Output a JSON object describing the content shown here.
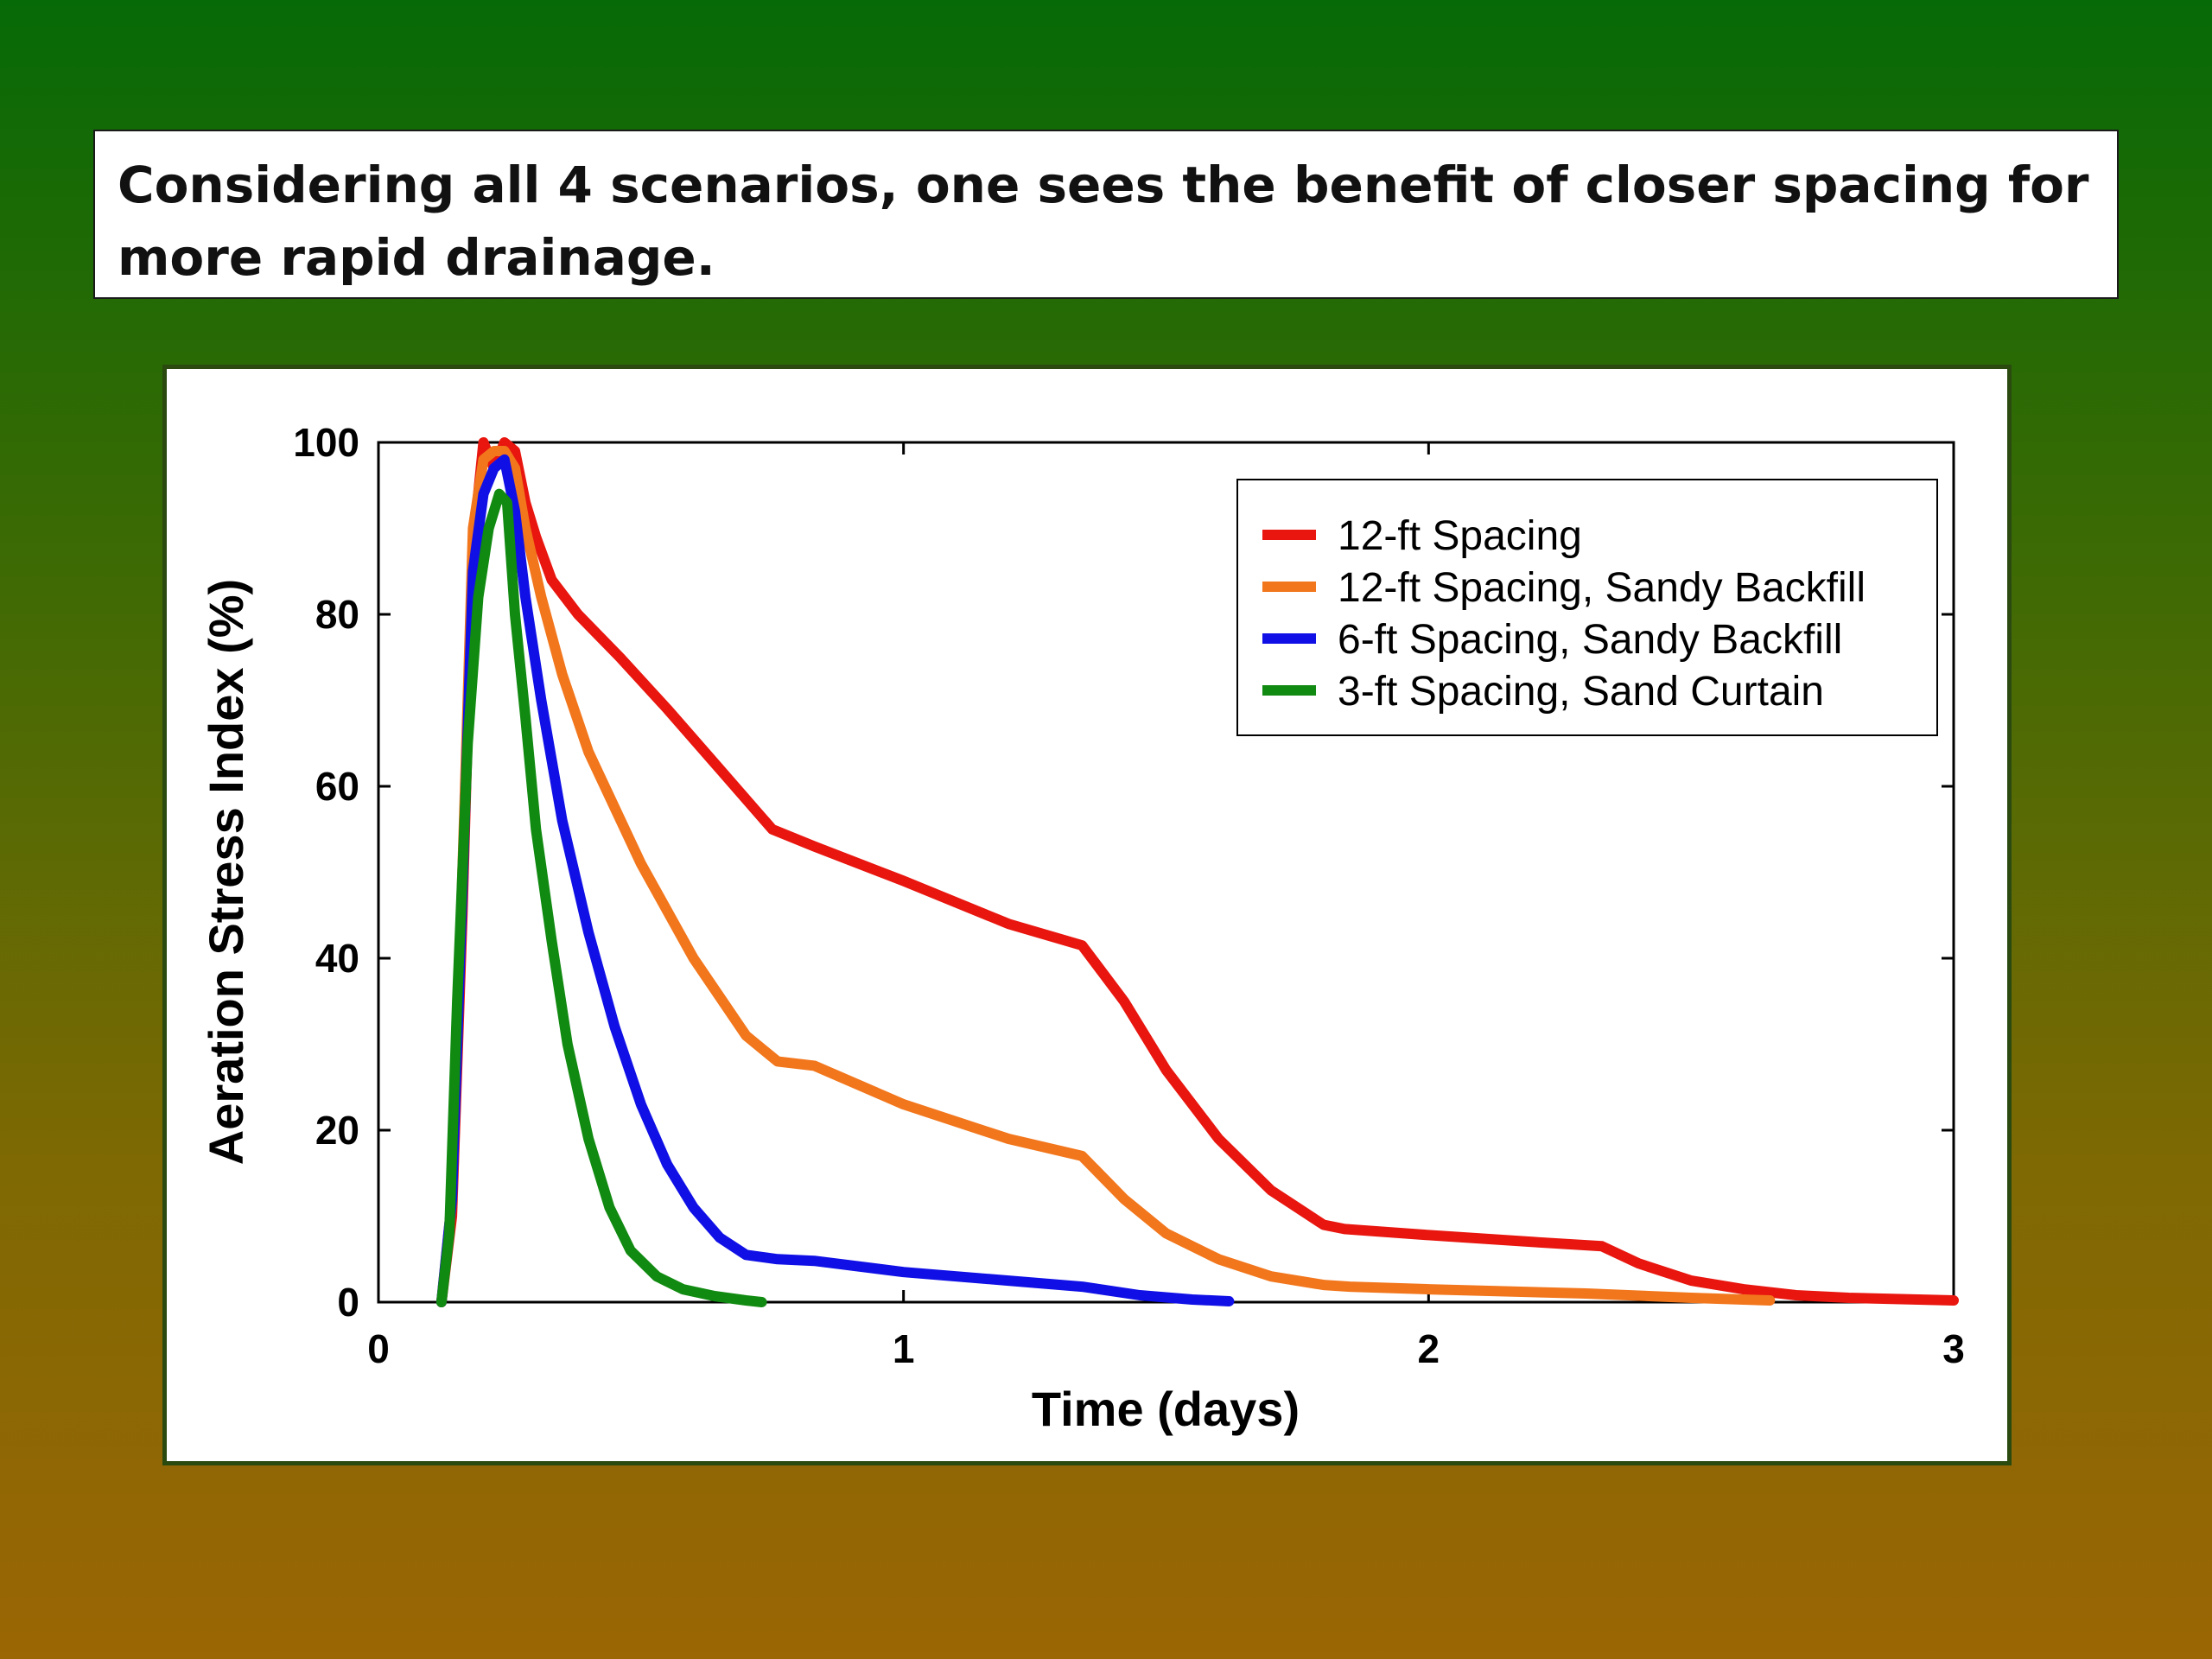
{
  "slide": {
    "title": "Considering all 4 scenarios, one sees the benefit of closer spacing for more rapid drainage."
  },
  "chart_data": {
    "type": "line",
    "title": "",
    "xlabel": "Time (days)",
    "ylabel": "Aeration Stress Index (%)",
    "xlim": [
      0,
      3
    ],
    "ylim": [
      0,
      100
    ],
    "xticks": [
      "0",
      "1",
      "2",
      "3"
    ],
    "yticks": [
      "0",
      "20",
      "40",
      "60",
      "80",
      "100"
    ],
    "grid": false,
    "legend_position": "top-right",
    "series": [
      {
        "name": "12-ft Spacing",
        "color": "#e8160f",
        "points": [
          [
            0.12,
            0
          ],
          [
            0.14,
            10
          ],
          [
            0.16,
            45
          ],
          [
            0.18,
            88
          ],
          [
            0.2,
            100
          ],
          [
            0.22,
            97
          ],
          [
            0.24,
            100
          ],
          [
            0.26,
            99
          ],
          [
            0.28,
            93
          ],
          [
            0.3,
            89
          ],
          [
            0.33,
            84
          ],
          [
            0.38,
            80
          ],
          [
            0.46,
            75
          ],
          [
            0.55,
            69
          ],
          [
            0.65,
            62
          ],
          [
            0.75,
            55
          ],
          [
            0.83,
            53
          ],
          [
            1.0,
            49
          ],
          [
            1.2,
            44
          ],
          [
            1.34,
            41.5
          ],
          [
            1.42,
            35
          ],
          [
            1.5,
            27
          ],
          [
            1.6,
            19
          ],
          [
            1.7,
            13
          ],
          [
            1.8,
            9
          ],
          [
            1.84,
            8.5
          ],
          [
            2.0,
            7.8
          ],
          [
            2.2,
            7
          ],
          [
            2.33,
            6.5
          ],
          [
            2.4,
            4.5
          ],
          [
            2.5,
            2.5
          ],
          [
            2.6,
            1.5
          ],
          [
            2.7,
            0.8
          ],
          [
            2.8,
            0.5
          ],
          [
            3.0,
            0.2
          ]
        ]
      },
      {
        "name": "12-ft Spacing, Sandy Backfill",
        "color": "#f2761c",
        "points": [
          [
            0.12,
            0
          ],
          [
            0.14,
            12
          ],
          [
            0.16,
            50
          ],
          [
            0.18,
            90
          ],
          [
            0.2,
            98
          ],
          [
            0.22,
            99
          ],
          [
            0.24,
            99
          ],
          [
            0.26,
            97
          ],
          [
            0.28,
            90
          ],
          [
            0.31,
            82
          ],
          [
            0.35,
            73
          ],
          [
            0.4,
            64
          ],
          [
            0.5,
            51
          ],
          [
            0.6,
            40
          ],
          [
            0.7,
            31
          ],
          [
            0.76,
            28
          ],
          [
            0.83,
            27.5
          ],
          [
            1.0,
            23
          ],
          [
            1.2,
            19
          ],
          [
            1.34,
            17
          ],
          [
            1.42,
            12
          ],
          [
            1.5,
            8
          ],
          [
            1.6,
            5
          ],
          [
            1.7,
            3
          ],
          [
            1.8,
            2
          ],
          [
            1.85,
            1.8
          ],
          [
            2.0,
            1.5
          ],
          [
            2.3,
            1
          ],
          [
            2.5,
            0.5
          ],
          [
            2.65,
            0.2
          ]
        ]
      },
      {
        "name": "6-ft Spacing, Sandy Backfill",
        "color": "#1010e6",
        "points": [
          [
            0.12,
            0
          ],
          [
            0.14,
            12
          ],
          [
            0.16,
            48
          ],
          [
            0.18,
            85
          ],
          [
            0.2,
            94
          ],
          [
            0.22,
            97
          ],
          [
            0.24,
            98
          ],
          [
            0.26,
            92
          ],
          [
            0.28,
            82
          ],
          [
            0.31,
            70
          ],
          [
            0.35,
            56
          ],
          [
            0.4,
            43
          ],
          [
            0.45,
            32
          ],
          [
            0.5,
            23
          ],
          [
            0.55,
            16
          ],
          [
            0.6,
            11
          ],
          [
            0.65,
            7.5
          ],
          [
            0.7,
            5.5
          ],
          [
            0.76,
            5
          ],
          [
            0.83,
            4.8
          ],
          [
            1.0,
            3.5
          ],
          [
            1.2,
            2.5
          ],
          [
            1.34,
            1.8
          ],
          [
            1.45,
            0.8
          ],
          [
            1.55,
            0.3
          ],
          [
            1.62,
            0.1
          ]
        ]
      },
      {
        "name": "3-ft Spacing, Sand Curtain",
        "color": "#118a11",
        "points": [
          [
            0.12,
            0
          ],
          [
            0.135,
            8
          ],
          [
            0.15,
            35
          ],
          [
            0.17,
            65
          ],
          [
            0.19,
            82
          ],
          [
            0.21,
            90
          ],
          [
            0.23,
            94
          ],
          [
            0.245,
            93
          ],
          [
            0.26,
            80
          ],
          [
            0.28,
            68
          ],
          [
            0.3,
            55
          ],
          [
            0.33,
            42
          ],
          [
            0.36,
            30
          ],
          [
            0.4,
            19
          ],
          [
            0.44,
            11
          ],
          [
            0.48,
            6
          ],
          [
            0.53,
            3
          ],
          [
            0.58,
            1.5
          ],
          [
            0.64,
            0.7
          ],
          [
            0.7,
            0.2
          ],
          [
            0.73,
            0
          ]
        ]
      }
    ]
  }
}
